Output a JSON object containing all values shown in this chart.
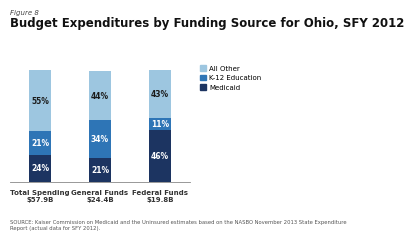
{
  "figure_label": "Figure 8",
  "title": "Budget Expenditures by Funding Source for Ohio, SFY 2012",
  "categories": [
    "Total Spending\n$57.9B",
    "General Funds\n$24.4B",
    "Federal Funds\n$19.8B"
  ],
  "medicaid": [
    24,
    21,
    46
  ],
  "k12": [
    21,
    34,
    11
  ],
  "other": [
    55,
    44,
    43
  ],
  "colors": {
    "medicaid": "#1c3461",
    "k12": "#2e75b6",
    "other": "#9dc6e0"
  },
  "source_text": "SOURCE: Kaiser Commission on Medicaid and the Uninsured estimates based on the NASBO November 2013 State Expenditure\nReport (actual data for SFY 2012).",
  "bar_width": 0.38
}
